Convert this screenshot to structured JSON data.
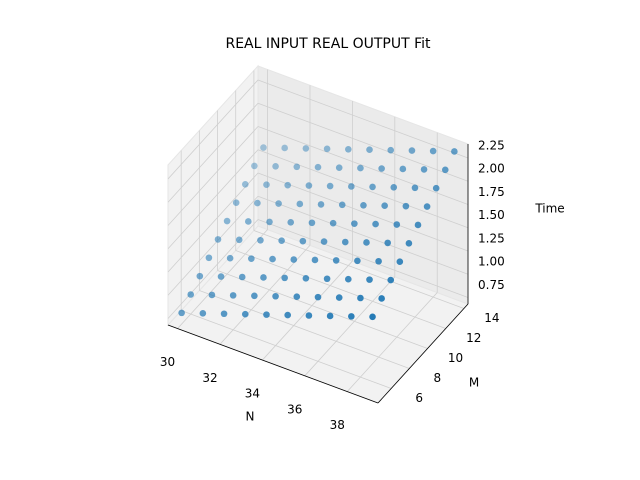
{
  "chart_data": {
    "type": "scatter3d",
    "title": "REAL INPUT REAL OUTPUT Fit",
    "x_label": "N",
    "y_label": "M",
    "z_label": "Time",
    "color": "#1f77b4",
    "x": [
      30,
      31,
      32,
      33,
      34,
      35,
      36,
      37,
      38,
      39,
      30,
      31,
      32,
      33,
      34,
      35,
      36,
      37,
      38,
      39,
      30,
      31,
      32,
      33,
      34,
      35,
      36,
      37,
      38,
      39,
      30,
      31,
      32,
      33,
      34,
      35,
      36,
      37,
      38,
      39,
      30,
      31,
      32,
      33,
      34,
      35,
      36,
      37,
      38,
      39,
      30,
      31,
      32,
      33,
      34,
      35,
      36,
      37,
      38,
      39,
      30,
      31,
      32,
      33,
      34,
      35,
      36,
      37,
      38,
      39,
      30,
      31,
      32,
      33,
      34,
      35,
      36,
      37,
      38,
      39,
      30,
      31,
      32,
      33,
      34,
      35,
      36,
      37,
      38,
      39,
      30,
      31,
      32,
      33,
      34,
      35,
      36,
      37,
      38,
      39
    ],
    "y": [
      5,
      5,
      5,
      5,
      5,
      5,
      5,
      5,
      5,
      5,
      6,
      6,
      6,
      6,
      6,
      6,
      6,
      6,
      6,
      6,
      7,
      7,
      7,
      7,
      7,
      7,
      7,
      7,
      7,
      7,
      8,
      8,
      8,
      8,
      8,
      8,
      8,
      8,
      8,
      8,
      9,
      9,
      9,
      9,
      9,
      9,
      9,
      9,
      9,
      9,
      10,
      10,
      10,
      10,
      10,
      10,
      10,
      10,
      10,
      10,
      11,
      11,
      11,
      11,
      11,
      11,
      11,
      11,
      11,
      11,
      12,
      12,
      12,
      12,
      12,
      12,
      12,
      12,
      12,
      12,
      13,
      13,
      13,
      13,
      13,
      13,
      13,
      13,
      13,
      13,
      14,
      14,
      14,
      14,
      14,
      14,
      14,
      14,
      14,
      14
    ],
    "z": [
      0.8,
      0.88,
      0.96,
      1.04,
      1.12,
      1.2,
      1.28,
      1.36,
      1.44,
      1.52,
      0.89,
      0.97,
      1.05,
      1.13,
      1.21,
      1.29,
      1.37,
      1.45,
      1.53,
      1.61,
      0.98,
      1.06,
      1.14,
      1.22,
      1.3,
      1.38,
      1.46,
      1.54,
      1.62,
      1.7,
      1.07,
      1.15,
      1.23,
      1.31,
      1.39,
      1.47,
      1.55,
      1.63,
      1.71,
      1.79,
      1.16,
      1.24,
      1.32,
      1.4,
      1.48,
      1.56,
      1.64,
      1.72,
      1.8,
      1.88,
      1.25,
      1.33,
      1.41,
      1.49,
      1.57,
      1.65,
      1.73,
      1.81,
      1.89,
      1.97,
      1.34,
      1.42,
      1.5,
      1.58,
      1.66,
      1.74,
      1.82,
      1.9,
      1.98,
      2.06,
      1.43,
      1.51,
      1.59,
      1.67,
      1.75,
      1.83,
      1.91,
      1.99,
      2.07,
      2.15,
      1.52,
      1.6,
      1.68,
      1.76,
      1.84,
      1.92,
      2.0,
      2.08,
      2.16,
      2.24,
      1.61,
      1.69,
      1.77,
      1.85,
      1.93,
      2.01,
      2.09,
      2.17,
      2.25,
      2.33
    ],
    "xlim": [
      29.55,
      39.45
    ],
    "ylim": [
      4.55,
      14.45
    ],
    "zlim": [
      0.68,
      2.4
    ],
    "xticks": [
      30,
      32,
      34,
      36,
      38
    ],
    "yticks": [
      6,
      8,
      10,
      12,
      14
    ],
    "zticks": [
      0.75,
      {
        "value": 1,
        "label": "1.00"
      },
      1.25,
      {
        "value": 1.5,
        "label": "1.50"
      },
      1.75,
      {
        "value": 2,
        "label": "2.00"
      },
      2.25
    ],
    "grid": true
  }
}
